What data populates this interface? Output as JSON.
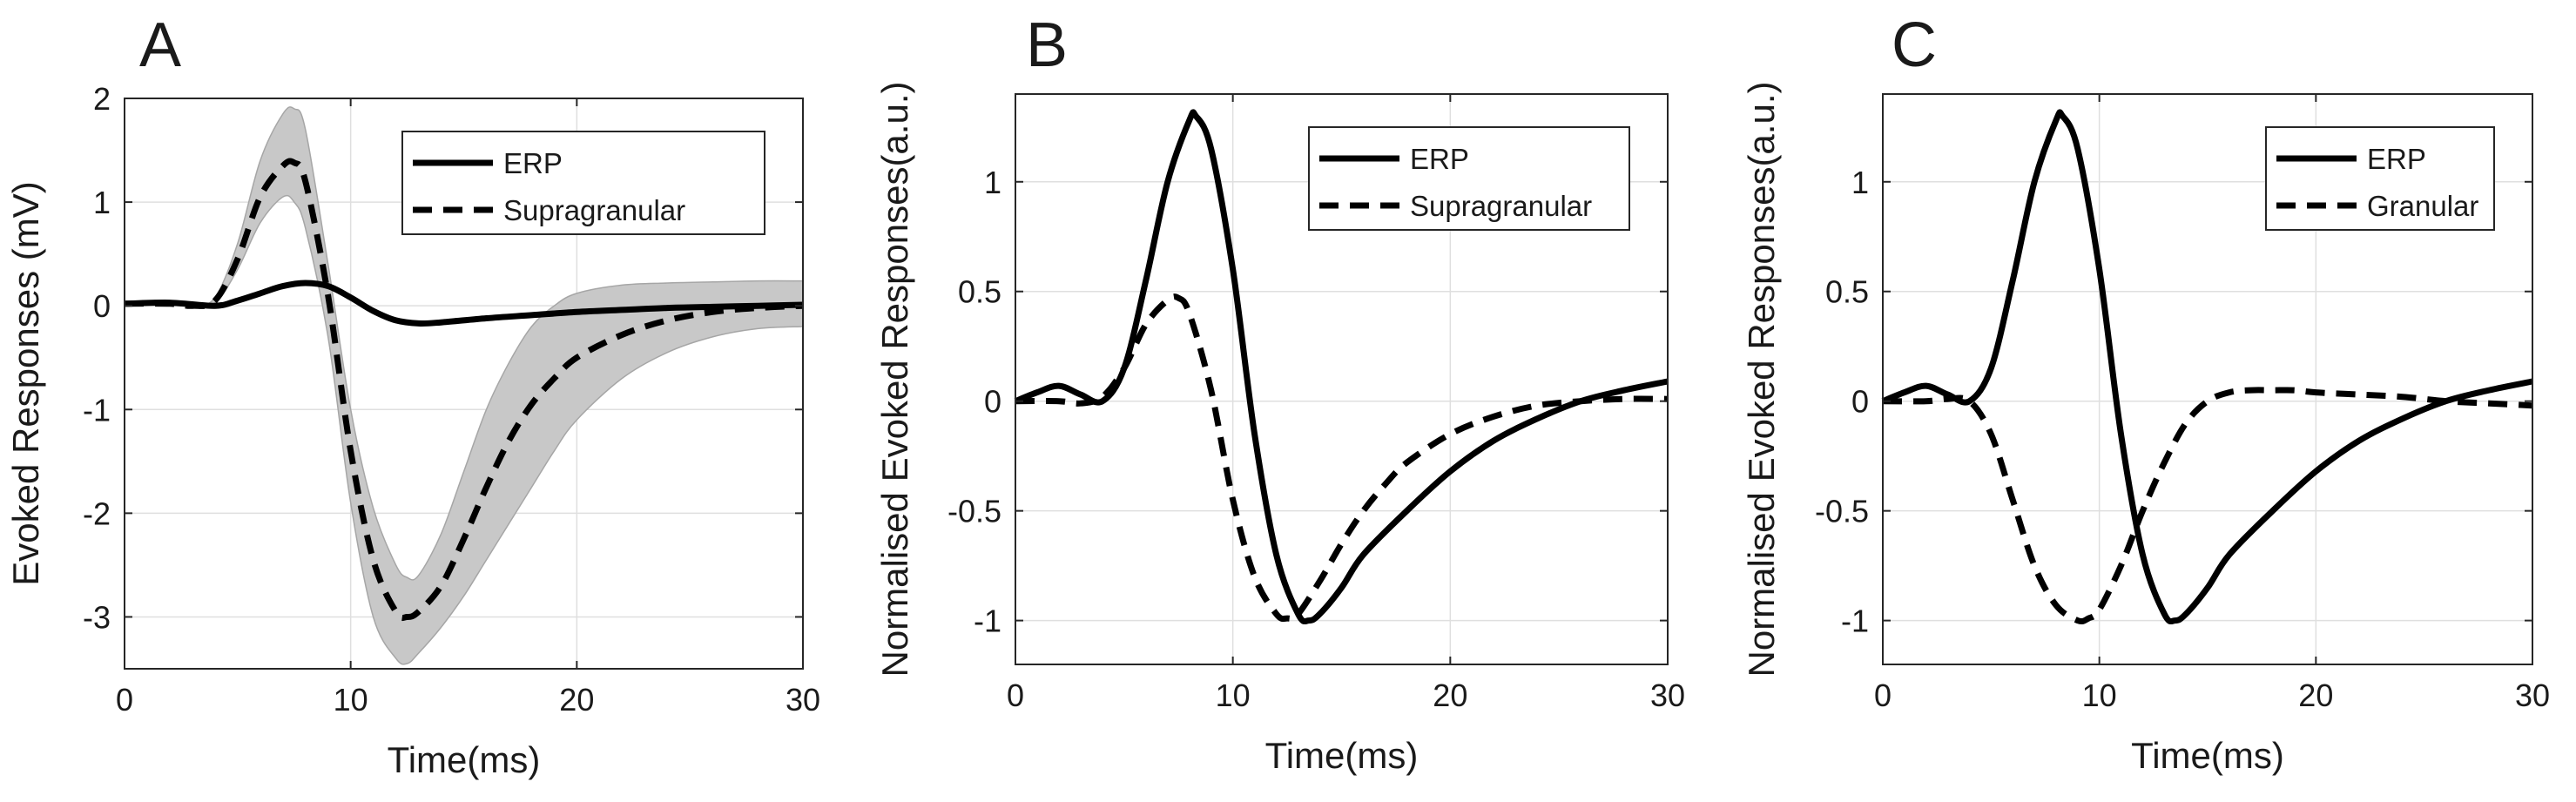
{
  "chart_data": [
    {
      "panel": "A",
      "type": "line",
      "xlabel": "Time(ms)",
      "ylabel": "Evoked Responses (mV)",
      "xlim": [
        0,
        30
      ],
      "ylim": [
        -3.5,
        2
      ],
      "xticks": [
        0,
        10,
        20,
        30
      ],
      "yticks": [
        -3,
        -2,
        -1,
        0,
        1,
        2
      ],
      "grid": true,
      "legend_position": "top-right",
      "series": [
        {
          "name": "ERP",
          "style": "solid",
          "color": "#000000",
          "x": [
            0,
            2,
            4,
            5,
            6,
            7,
            8,
            9,
            10,
            11,
            12,
            13,
            14,
            16,
            18,
            20,
            22,
            24,
            26,
            28,
            30
          ],
          "y": [
            0.02,
            0.03,
            0.0,
            0.05,
            0.12,
            0.19,
            0.22,
            0.19,
            0.08,
            -0.05,
            -0.14,
            -0.17,
            -0.16,
            -0.12,
            -0.09,
            -0.06,
            -0.04,
            -0.02,
            -0.01,
            0.0,
            0.01
          ]
        },
        {
          "name": "Supragranular",
          "style": "dashed",
          "color": "#000000",
          "x": [
            0,
            2,
            3,
            4,
            5,
            6,
            7,
            7.5,
            8,
            9,
            10,
            11,
            12,
            12.5,
            13,
            14,
            15,
            16,
            17,
            18,
            19,
            20,
            22,
            24,
            26,
            28,
            30
          ],
          "y": [
            0.02,
            0.02,
            0.0,
            0.05,
            0.45,
            1.05,
            1.35,
            1.38,
            1.2,
            0.1,
            -1.4,
            -2.45,
            -2.95,
            -3.0,
            -2.95,
            -2.7,
            -2.25,
            -1.75,
            -1.3,
            -0.95,
            -0.7,
            -0.5,
            -0.28,
            -0.14,
            -0.06,
            -0.02,
            0.0
          ]
        }
      ],
      "band": {
        "name": "Supragranular range",
        "color": "#c8c8c8",
        "x": [
          0,
          2,
          3,
          4,
          5,
          6,
          7,
          7.5,
          8,
          9,
          10,
          11,
          12,
          12.5,
          13,
          14,
          15,
          16,
          17,
          18,
          19,
          20,
          22,
          24,
          26,
          28,
          30
        ],
        "upper": [
          0.02,
          0.02,
          0.0,
          0.08,
          0.6,
          1.4,
          1.85,
          1.9,
          1.7,
          0.4,
          -1.0,
          -1.95,
          -2.5,
          -2.62,
          -2.6,
          -2.2,
          -1.6,
          -1.0,
          -0.55,
          -0.2,
          0.0,
          0.12,
          0.2,
          0.22,
          0.23,
          0.24,
          0.24
        ],
        "lower": [
          0.02,
          0.02,
          0.0,
          0.03,
          0.35,
          0.8,
          1.05,
          1.0,
          0.75,
          -0.3,
          -1.9,
          -3.0,
          -3.4,
          -3.45,
          -3.35,
          -3.1,
          -2.8,
          -2.45,
          -2.1,
          -1.75,
          -1.4,
          -1.1,
          -0.7,
          -0.45,
          -0.3,
          -0.22,
          -0.2
        ]
      }
    },
    {
      "panel": "B",
      "type": "line",
      "xlabel": "Time(ms)",
      "ylabel": "Normalised Evoked Responses(a.u.)",
      "xlim": [
        0,
        30
      ],
      "ylim": [
        -1.2,
        1.4
      ],
      "xticks": [
        0,
        10,
        20,
        30
      ],
      "yticks": [
        -1,
        -0.5,
        0,
        0.5,
        1
      ],
      "grid": true,
      "legend_position": "top-right",
      "series": [
        {
          "name": "ERP",
          "style": "solid",
          "color": "#000000",
          "x": [
            0,
            1,
            2,
            3,
            4,
            5,
            6,
            7,
            8,
            8.3,
            9,
            10,
            11,
            12,
            13,
            13.5,
            14,
            15,
            16,
            18,
            20,
            22,
            24,
            26,
            28,
            30
          ],
          "y": [
            0.0,
            0.04,
            0.07,
            0.03,
            0.0,
            0.15,
            0.55,
            1.0,
            1.28,
            1.3,
            1.15,
            0.6,
            -0.15,
            -0.7,
            -0.97,
            -1.0,
            -0.97,
            -0.85,
            -0.7,
            -0.5,
            -0.32,
            -0.18,
            -0.08,
            0.0,
            0.05,
            0.09
          ]
        },
        {
          "name": "Supragranular",
          "style": "dashed",
          "color": "#000000",
          "x": [
            0,
            2,
            3,
            4,
            5,
            6,
            7,
            7.5,
            8,
            9,
            10,
            11,
            12,
            12.5,
            13,
            14,
            15,
            16,
            17,
            18,
            20,
            22,
            24,
            26,
            28,
            30
          ],
          "y": [
            0.0,
            0.0,
            -0.01,
            0.02,
            0.15,
            0.35,
            0.46,
            0.47,
            0.4,
            0.05,
            -0.45,
            -0.8,
            -0.97,
            -0.99,
            -0.97,
            -0.82,
            -0.65,
            -0.5,
            -0.38,
            -0.28,
            -0.15,
            -0.07,
            -0.02,
            0.0,
            0.01,
            0.01
          ]
        }
      ]
    },
    {
      "panel": "C",
      "type": "line",
      "xlabel": "Time(ms)",
      "ylabel": "Normalised Evoked Responses(a.u.)",
      "xlim": [
        0,
        30
      ],
      "ylim": [
        -1.2,
        1.4
      ],
      "xticks": [
        0,
        10,
        20,
        30
      ],
      "yticks": [
        -1,
        -0.5,
        0,
        0.5,
        1
      ],
      "grid": true,
      "legend_position": "top-right",
      "series": [
        {
          "name": "ERP",
          "style": "solid",
          "color": "#000000",
          "x": [
            0,
            1,
            2,
            3,
            4,
            5,
            6,
            7,
            8,
            8.3,
            9,
            10,
            11,
            12,
            13,
            13.5,
            14,
            15,
            16,
            18,
            20,
            22,
            24,
            26,
            28,
            30
          ],
          "y": [
            0.0,
            0.04,
            0.07,
            0.03,
            0.0,
            0.15,
            0.55,
            1.0,
            1.28,
            1.3,
            1.15,
            0.6,
            -0.15,
            -0.7,
            -0.97,
            -1.0,
            -0.97,
            -0.85,
            -0.7,
            -0.5,
            -0.32,
            -0.18,
            -0.08,
            0.0,
            0.05,
            0.09
          ]
        },
        {
          "name": "Granular",
          "style": "dashed",
          "color": "#000000",
          "x": [
            0,
            2,
            3,
            4,
            5,
            6,
            7,
            8,
            9,
            9.5,
            10,
            11,
            12,
            13,
            14,
            15,
            16,
            17,
            18,
            19,
            20,
            22,
            24,
            26,
            28,
            30
          ],
          "y": [
            0.0,
            0.0,
            0.01,
            0.0,
            -0.15,
            -0.45,
            -0.75,
            -0.93,
            -1.0,
            -0.99,
            -0.95,
            -0.75,
            -0.5,
            -0.28,
            -0.1,
            0.0,
            0.04,
            0.05,
            0.05,
            0.05,
            0.04,
            0.03,
            0.02,
            0.0,
            -0.01,
            -0.02
          ]
        }
      ]
    }
  ]
}
